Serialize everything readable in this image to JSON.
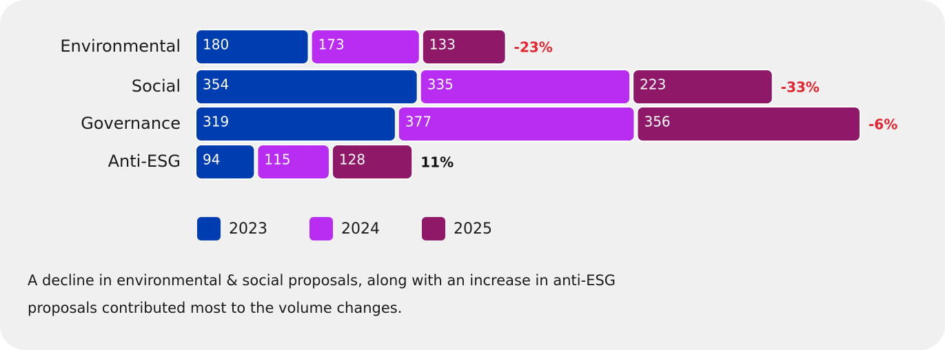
{
  "chart_data": {
    "type": "stacked-bar",
    "categories": [
      "Environmental",
      "Social",
      "Governance",
      "Anti-ESG"
    ],
    "series": [
      {
        "name": "2023",
        "color": "#003db0",
        "values": [
          180,
          354,
          319,
          94
        ]
      },
      {
        "name": "2024",
        "color": "#b92cf2",
        "values": [
          173,
          335,
          377,
          115
        ]
      },
      {
        "name": "2025",
        "color": "#8f1869",
        "values": [
          133,
          223,
          356,
          128
        ]
      }
    ],
    "annotations": [
      {
        "text": "-23%",
        "color": "#e3262f"
      },
      {
        "text": "-33%",
        "color": "#e3262f"
      },
      {
        "text": "-6%",
        "color": "#e3262f"
      },
      {
        "text": "11%",
        "color": "#111111"
      }
    ],
    "caption": "A decline in environmental & social proposals, along with an increase in anti-ESG proposals contributed most to the volume changes."
  }
}
